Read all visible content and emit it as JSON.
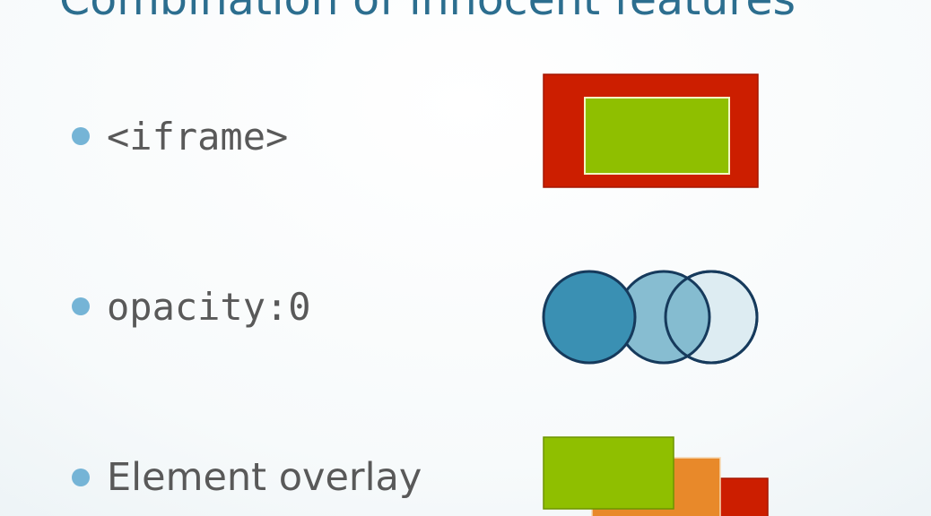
{
  "slide": {
    "title": "Combination of innocent features",
    "bullets": [
      {
        "text": "<iframe>"
      },
      {
        "text": "opacity:0"
      },
      {
        "text": "Element overlay"
      }
    ]
  },
  "colors": {
    "title": "#2c6e8f",
    "bullet_dot": "#75b4d6",
    "body_text": "#595959",
    "red": "#cc1e00",
    "green": "#8fbf00",
    "orange": "#e8892a",
    "circle_dark": "#3a90b3",
    "circle_mid": "#7db7cd",
    "circle_light": "#ddecf2",
    "circle_outline": "#163a5c"
  },
  "icons": [
    "nested-rectangles-icon",
    "overlapping-circles-icon",
    "stacked-rectangles-icon"
  ]
}
